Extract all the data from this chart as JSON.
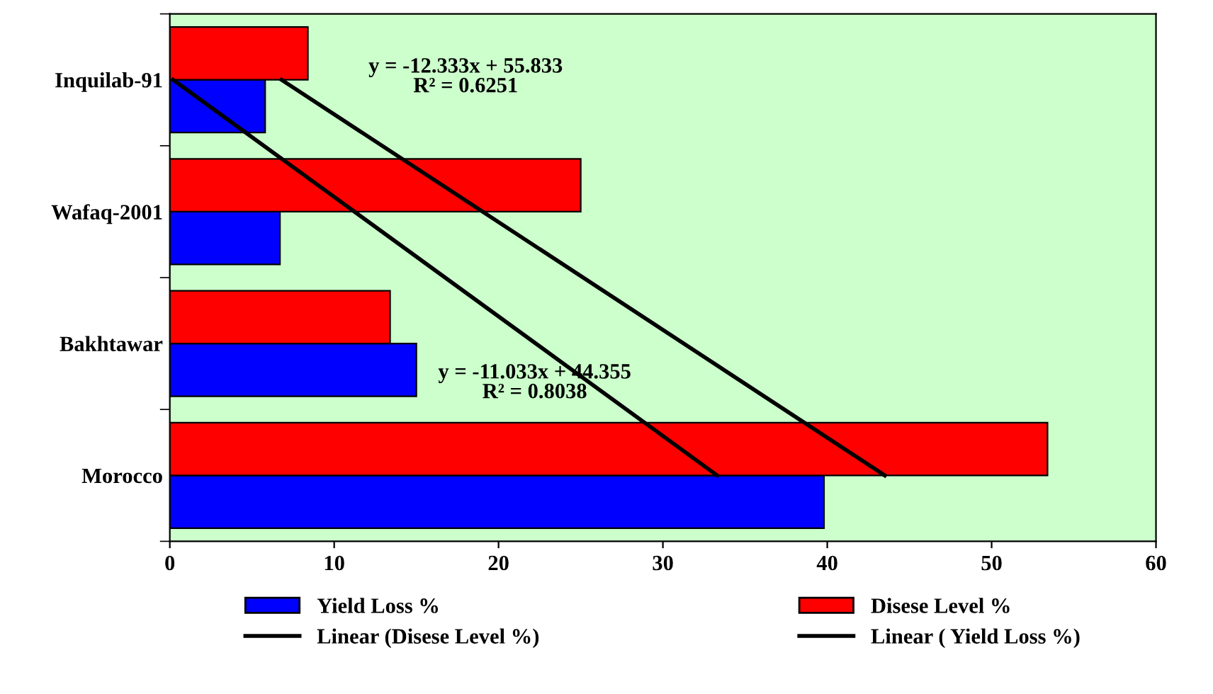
{
  "chart_data": {
    "type": "bar",
    "orientation": "horizontal",
    "categories": [
      "Inquilab-91",
      "Wafaq-2001",
      "Bakhtawar",
      "Morocco"
    ],
    "series": [
      {
        "name": "Yield Loss %",
        "color": "#0000ff",
        "values": [
          5.8,
          6.7,
          15.0,
          39.8
        ]
      },
      {
        "name": "Disese Level %",
        "color": "#ff0000",
        "values": [
          8.4,
          25.0,
          13.4,
          53.4
        ]
      },
      {
        "name": "Linear (Disese Level %)",
        "type": "line",
        "color": "#000000",
        "x": [
          "Inquilab-91",
          "Morocco"
        ],
        "values": [
          6.8,
          43.5
        ]
      },
      {
        "name": "Linear ( Yield Loss %)",
        "type": "line",
        "color": "#000000",
        "x": [
          "Inquilab-91",
          "Morocco"
        ],
        "values": [
          0.2,
          33.3
        ]
      }
    ],
    "xlim": [
      0,
      60
    ],
    "xticks": [
      0,
      10,
      20,
      30,
      40,
      50,
      60
    ],
    "annotations": [
      "y = -12.333x + 55.833\nR² = 0.6251",
      "y = -11.033x + 44.355\nR² = 0.8038"
    ],
    "grid": false,
    "legend": "bottom",
    "line_style": "solid",
    "marker": "none"
  }
}
